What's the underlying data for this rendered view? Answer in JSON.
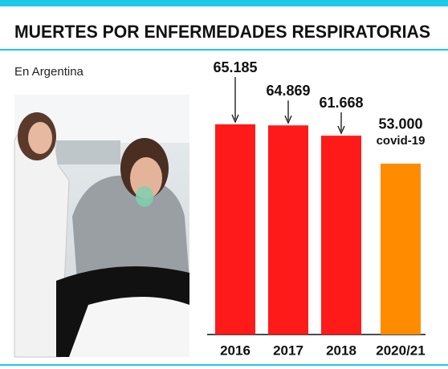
{
  "chart_data": {
    "type": "bar",
    "title": "MUERTES POR ENFERMEDADES RESPIRATORIAS",
    "subtitle": "En Argentina",
    "categories": [
      "2016",
      "2017",
      "2018",
      "2020/21"
    ],
    "values": [
      65185,
      64869,
      61668,
      53000
    ],
    "value_labels": [
      "65.185",
      "64.869",
      "61.668",
      "53.000"
    ],
    "colors": [
      "#ff1a1a",
      "#ff1a1a",
      "#ff1a1a",
      "#ff8c00"
    ],
    "annotation": "covid-19"
  }
}
